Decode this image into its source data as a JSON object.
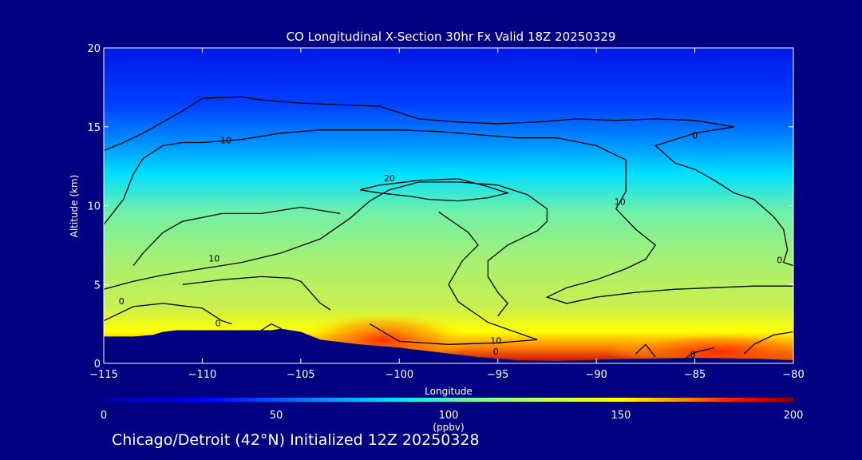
{
  "footer_text": "Chicago/Detroit (42°N) Initialized 12Z 20250328",
  "chart_data": {
    "type": "heatmap",
    "title": "CO Longitudinal X-Section 30hr  Fx Valid 18Z 20250329",
    "xlabel": "Longitude",
    "ylabel": "Altitude (km)",
    "xlim": [
      -115,
      -80
    ],
    "ylim": [
      0,
      20
    ],
    "xticks": [
      -115,
      -110,
      -105,
      -100,
      -95,
      -90,
      -85,
      -80
    ],
    "yticks": [
      0,
      5,
      10,
      15,
      20
    ],
    "colorbar": {
      "label": "(ppbv)",
      "range": [
        0,
        200
      ],
      "ticks": [
        0,
        50,
        100,
        150,
        200
      ],
      "colormap": [
        "#0000a0",
        "#0000ff",
        "#0080ff",
        "#00e0ff",
        "#7fffa0",
        "#c8ff50",
        "#ffff00",
        "#ff8000",
        "#ff0000",
        "#800000"
      ]
    },
    "contour_labels": [
      {
        "text": "10",
        "x": -108.8,
        "y": 14.1
      },
      {
        "text": "20",
        "x": -100.5,
        "y": 11.7
      },
      {
        "text": "10",
        "x": -88.8,
        "y": 10.2
      },
      {
        "text": "0",
        "x": -85.0,
        "y": 14.4
      },
      {
        "text": "10",
        "x": -109.4,
        "y": 6.6
      },
      {
        "text": "0",
        "x": -114.1,
        "y": 3.9
      },
      {
        "text": "0",
        "x": -80.7,
        "y": 6.5
      },
      {
        "text": "0",
        "x": -109.2,
        "y": 2.5
      },
      {
        "text": "10",
        "x": -95.1,
        "y": 1.4
      },
      {
        "text": "0",
        "x": -95.1,
        "y": 0.7
      },
      {
        "text": "0",
        "x": -85.1,
        "y": 0.5
      }
    ],
    "terrain": [
      [
        -115,
        1.7
      ],
      [
        -113.5,
        1.7
      ],
      [
        -112.5,
        1.8
      ],
      [
        -112,
        2.0
      ],
      [
        -111.3,
        2.1
      ],
      [
        -110,
        2.1
      ],
      [
        -108,
        2.1
      ],
      [
        -106.5,
        2.1
      ],
      [
        -106,
        2.2
      ],
      [
        -105,
        2.0
      ],
      [
        -104,
        1.5
      ],
      [
        -102,
        1.2
      ],
      [
        -100,
        1.0
      ],
      [
        -98,
        0.7
      ],
      [
        -96,
        0.4
      ],
      [
        -94,
        0.2
      ],
      [
        -92,
        0.15
      ],
      [
        -88,
        0.3
      ],
      [
        -85,
        0.35
      ],
      [
        -82,
        0.3
      ],
      [
        -80,
        0.2
      ]
    ],
    "contours": [
      [
        [
          -115,
          13.5
        ],
        [
          -114,
          14.0
        ],
        [
          -113,
          14.6
        ],
        [
          -111,
          16.0
        ],
        [
          -110,
          16.8
        ],
        [
          -108,
          16.9
        ],
        [
          -107,
          16.7
        ],
        [
          -105,
          16.5
        ],
        [
          -103,
          16.4
        ],
        [
          -101,
          16.3
        ],
        [
          -99,
          15.5
        ],
        [
          -97,
          15.3
        ],
        [
          -95,
          15.2
        ],
        [
          -93,
          15.3
        ],
        [
          -91,
          15.5
        ],
        [
          -89,
          15.4
        ],
        [
          -87,
          15.5
        ],
        [
          -85,
          15.4
        ],
        [
          -83,
          15.0
        ],
        [
          -85,
          14.6
        ],
        [
          -87,
          13.8
        ],
        [
          -86,
          12.7
        ],
        [
          -85,
          12.3
        ],
        [
          -84,
          11.6
        ],
        [
          -83,
          10.8
        ],
        [
          -82,
          10.4
        ],
        [
          -81,
          9.3
        ],
        [
          -80.5,
          8.5
        ],
        [
          -80.3,
          7.2
        ],
        [
          -80.5,
          6.4
        ],
        [
          -80,
          6.2
        ]
      ],
      [
        [
          -115,
          8.8
        ],
        [
          -114,
          10.4
        ],
        [
          -113.5,
          12.0
        ],
        [
          -113,
          13.0
        ],
        [
          -112,
          13.8
        ],
        [
          -111,
          14.0
        ],
        [
          -110,
          14.0
        ],
        [
          -108,
          14.2
        ],
        [
          -106,
          14.6
        ],
        [
          -104,
          14.8
        ],
        [
          -102,
          14.8
        ],
        [
          -100,
          14.8
        ],
        [
          -98,
          14.7
        ],
        [
          -96,
          14.5
        ],
        [
          -94,
          14.3
        ],
        [
          -92,
          14.3
        ],
        [
          -90,
          13.8
        ],
        [
          -88.5,
          12.9
        ],
        [
          -88.5,
          10.9
        ],
        [
          -89,
          9.8
        ],
        [
          -88,
          8.5
        ],
        [
          -87,
          7.5
        ],
        [
          -87.5,
          6.6
        ],
        [
          -88.5,
          6.0
        ],
        [
          -90,
          5.3
        ],
        [
          -91.5,
          4.8
        ],
        [
          -92.5,
          4.2
        ],
        [
          -91.5,
          3.8
        ],
        [
          -90,
          4.2
        ],
        [
          -88,
          4.5
        ],
        [
          -86,
          4.7
        ],
        [
          -82,
          4.9
        ],
        [
          -80,
          4.9
        ]
      ],
      [
        [
          -115,
          4.7
        ],
        [
          -113.5,
          5.2
        ],
        [
          -112,
          5.6
        ],
        [
          -110,
          6.0
        ],
        [
          -108,
          6.4
        ],
        [
          -106,
          7.0
        ],
        [
          -104,
          7.9
        ],
        [
          -102.5,
          9.2
        ],
        [
          -101.5,
          10.3
        ],
        [
          -100.5,
          11.0
        ],
        [
          -99,
          11.5
        ],
        [
          -97,
          11.5
        ],
        [
          -95,
          11.3
        ],
        [
          -93.5,
          10.7
        ],
        [
          -92.5,
          9.8
        ],
        [
          -92.5,
          9.0
        ],
        [
          -93,
          8.4
        ],
        [
          -94.5,
          7.5
        ],
        [
          -95.5,
          6.5
        ],
        [
          -95.5,
          5.5
        ],
        [
          -95,
          4.5
        ],
        [
          -94.5,
          3.8
        ],
        [
          -95,
          3.0
        ]
      ],
      [
        [
          -113.5,
          6.2
        ],
        [
          -113,
          7.0
        ],
        [
          -112,
          8.3
        ],
        [
          -111,
          9.0
        ],
        [
          -109,
          9.5
        ],
        [
          -107,
          9.5
        ],
        [
          -105,
          9.9
        ],
        [
          -104,
          9.7
        ],
        [
          -103,
          9.5
        ]
      ],
      [
        [
          -111,
          5.0
        ],
        [
          -109,
          5.3
        ],
        [
          -107,
          5.5
        ],
        [
          -105.5,
          5.4
        ],
        [
          -105,
          5.2
        ],
        [
          -104,
          3.8
        ],
        [
          -103.5,
          3.4
        ]
      ],
      [
        [
          -102,
          11.0
        ],
        [
          -101,
          10.8
        ],
        [
          -99.5,
          10.6
        ],
        [
          -98.5,
          10.4
        ],
        [
          -97,
          10.3
        ],
        [
          -95.5,
          10.5
        ],
        [
          -94.5,
          10.8
        ],
        [
          -95.5,
          11.2
        ],
        [
          -97,
          11.7
        ],
        [
          -99,
          11.6
        ],
        [
          -101,
          11.3
        ],
        [
          -102,
          11.0
        ]
      ],
      [
        [
          -115,
          2.7
        ],
        [
          -113.5,
          3.6
        ],
        [
          -112,
          3.8
        ],
        [
          -110,
          3.5
        ],
        [
          -109,
          2.7
        ],
        [
          -108.5,
          2.5
        ]
      ],
      [
        [
          -107,
          2.1
        ],
        [
          -106.5,
          2.5
        ],
        [
          -106,
          2.2
        ]
      ],
      [
        [
          -98,
          9.6
        ],
        [
          -96.5,
          8.3
        ],
        [
          -96,
          7.5
        ],
        [
          -96.8,
          6.5
        ],
        [
          -97.5,
          5.0
        ],
        [
          -97,
          3.9
        ],
        [
          -95.5,
          2.6
        ],
        [
          -93,
          1.5
        ],
        [
          -95,
          1.3
        ],
        [
          -97.5,
          1.2
        ],
        [
          -100,
          1.4
        ],
        [
          -101.5,
          2.5
        ]
      ],
      [
        [
          -82.5,
          0.6
        ],
        [
          -82,
          1.2
        ],
        [
          -81,
          1.8
        ],
        [
          -80,
          2.0
        ]
      ],
      [
        [
          -88,
          0.6
        ],
        [
          -87.5,
          1.2
        ],
        [
          -87,
          0.4
        ]
      ],
      [
        [
          -85.5,
          0.3
        ],
        [
          -85,
          0.7
        ],
        [
          -84,
          1.0
        ]
      ]
    ]
  }
}
